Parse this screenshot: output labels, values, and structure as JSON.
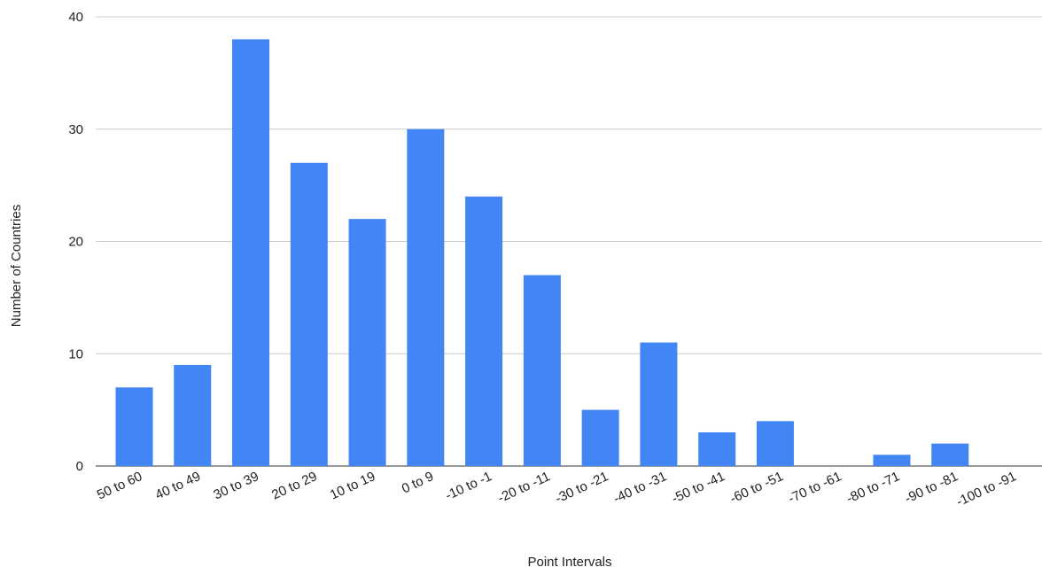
{
  "chart_data": {
    "type": "bar",
    "title": "",
    "xlabel": "Point Intervals",
    "ylabel": "Number of Countries",
    "categories": [
      "50 to 60",
      "40 to 49",
      "30 to 39",
      "20 to 29",
      "10 to 19",
      "0 to 9",
      "-10 to -1",
      "-20 to -11",
      "-30 to -21",
      "-40 to -31",
      "-50 to -41",
      "-60 to -51",
      "-70 to -61",
      "-80 to -71",
      "-90 to -81",
      "-100 to -91"
    ],
    "values": [
      7,
      9,
      38,
      27,
      22,
      30,
      24,
      17,
      5,
      11,
      3,
      4,
      0,
      1,
      2,
      0
    ],
    "ylim": [
      0,
      40
    ],
    "yticks": [
      "0",
      "10",
      "20",
      "30",
      "40"
    ],
    "grid": true,
    "legend": "none",
    "colors": {
      "bar": "#4285f4",
      "grid": "#cccccc",
      "baseline": "#333333"
    }
  }
}
